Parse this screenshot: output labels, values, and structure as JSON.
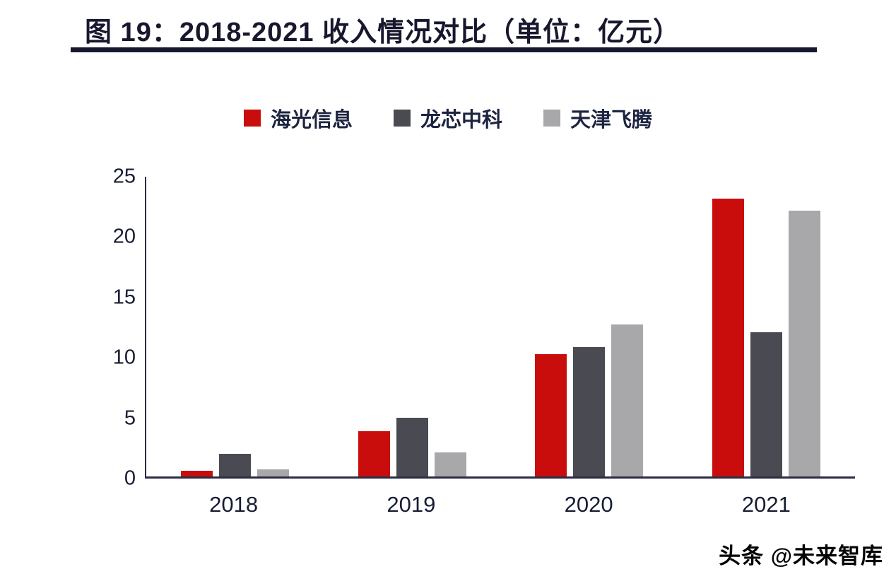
{
  "figure": {
    "title": "图 19：2018-2021 收入情况对比（单位：亿元）"
  },
  "watermark": {
    "text": "头条 @未来智库"
  },
  "chart_data": {
    "type": "bar",
    "title": "图 19：2018-2021 收入情况对比（单位：亿元）",
    "categories": [
      "2018",
      "2019",
      "2020",
      "2021"
    ],
    "series": [
      {
        "name": "海光信息",
        "color": "#c90d0d",
        "values": [
          0.5,
          3.8,
          10.2,
          23.2
        ]
      },
      {
        "name": "龙芯中科",
        "color": "#4a4a52",
        "values": [
          1.9,
          4.9,
          10.8,
          12.0
        ]
      },
      {
        "name": "天津飞腾",
        "color": "#a8a8ab",
        "values": [
          0.6,
          2.0,
          12.7,
          22.2
        ]
      }
    ],
    "xlabel": "",
    "ylabel": "",
    "ylim": [
      0,
      25
    ],
    "yticks": [
      0,
      5,
      10,
      15,
      20,
      25
    ],
    "legend_position": "top",
    "grid": false
  }
}
